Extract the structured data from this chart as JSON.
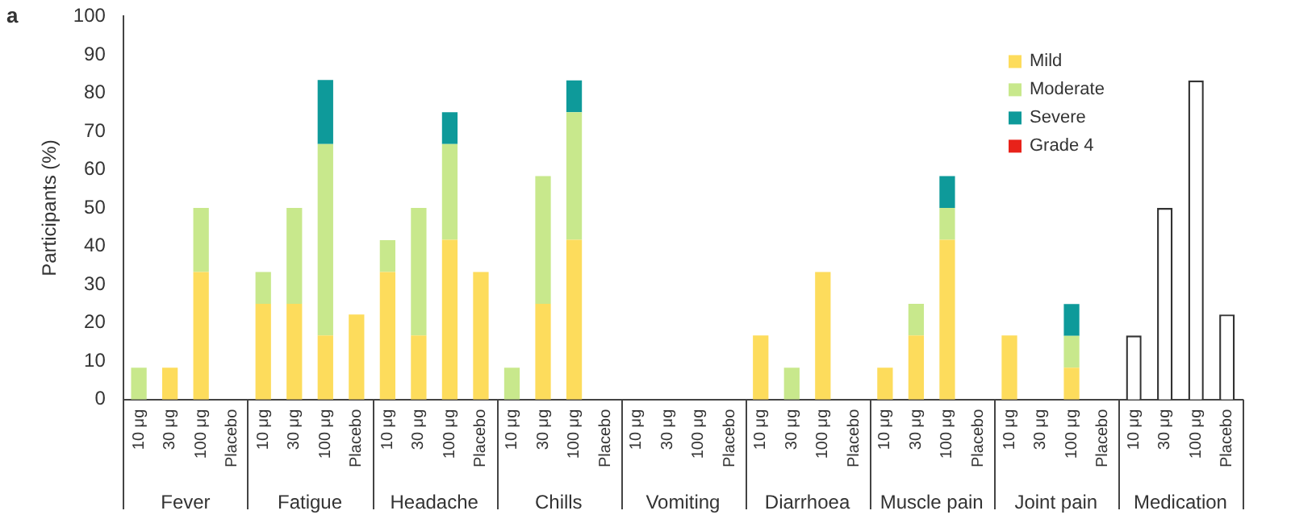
{
  "chart_data": {
    "type": "bar",
    "title": "a",
    "ylabel": "Participants (%)",
    "stacked": true,
    "grid": false,
    "legend": "top right",
    "categories": [
      "10 μg",
      "30 μg",
      "100 μg",
      "Placebo",
      "10 μg",
      "30 μg",
      "100 μg",
      "Placebo",
      "10 μg",
      "30 μg",
      "100 μg",
      "Placebo",
      "10 μg",
      "30 μg",
      "100 μg",
      "Placebo",
      "10 μg",
      "30 μg",
      "100 μg",
      "Placebo",
      "10 μg",
      "30 μg",
      "100 μg",
      "Placebo",
      "10 μg",
      "30 μg",
      "100 μg",
      "Placebo",
      "10 μg",
      "30 μg",
      "100 μg",
      "Placebo",
      "10 μg",
      "30 μg",
      "100 μg",
      "Placebo"
    ],
    "annotations": [
      "Fever",
      "Fatigue",
      "Headache",
      "Chills",
      "Vomiting",
      "Diarrhoea",
      "Muscle pain",
      "Joint pain",
      "Medication"
    ],
    "ylim": [
      0,
      100
    ],
    "yticks": [
      0,
      10,
      20,
      30,
      40,
      50,
      60,
      70,
      80,
      90,
      100
    ],
    "series": [
      {
        "name": "Mild",
        "color": "#fddc5c",
        "values": [
          0,
          8.3,
          33.3,
          0,
          25,
          25,
          16.7,
          22.2,
          33.3,
          16.7,
          41.7,
          33.3,
          0,
          25,
          41.7,
          0,
          0,
          0,
          0,
          0,
          16.7,
          0,
          33.3,
          0,
          8.3,
          16.7,
          41.7,
          0,
          16.7,
          0,
          8.3,
          0,
          null,
          null,
          null,
          null
        ]
      },
      {
        "name": "Moderate",
        "color": "#c8e88c",
        "values": [
          8.3,
          0,
          16.7,
          0,
          8.3,
          25,
          50,
          0,
          8.3,
          33.3,
          25,
          0,
          8.3,
          33.3,
          33.3,
          0,
          0,
          0,
          0,
          0,
          0,
          8.3,
          0,
          0,
          0,
          8.3,
          8.3,
          0,
          0,
          0,
          8.3,
          0,
          null,
          null,
          null,
          null
        ]
      },
      {
        "name": "Severe",
        "color": "#0e9a9a",
        "values": [
          0,
          0,
          0,
          0,
          0,
          0,
          16.7,
          0,
          0,
          0,
          8.3,
          0,
          0,
          0,
          8.3,
          0,
          0,
          0,
          0,
          0,
          0,
          0,
          0,
          0,
          0,
          0,
          8.3,
          0,
          0,
          0,
          8.3,
          0,
          null,
          null,
          null,
          null
        ]
      },
      {
        "name": "Grade 4",
        "color": "#e8221a",
        "values": [
          0,
          0,
          0,
          0,
          0,
          0,
          0,
          0,
          0,
          0,
          0,
          0,
          0,
          0,
          0,
          0,
          0,
          0,
          0,
          0,
          0,
          0,
          0,
          0,
          0,
          0,
          0,
          0,
          0,
          0,
          0,
          0,
          null,
          null,
          null,
          null
        ]
      },
      {
        "color": "#ffffff",
        "values": [
          null,
          null,
          null,
          null,
          null,
          null,
          null,
          null,
          null,
          null,
          null,
          null,
          null,
          null,
          null,
          null,
          null,
          null,
          null,
          null,
          null,
          null,
          null,
          null,
          null,
          null,
          null,
          null,
          null,
          null,
          null,
          null,
          16.7,
          50,
          83.3,
          22.2
        ]
      }
    ]
  }
}
